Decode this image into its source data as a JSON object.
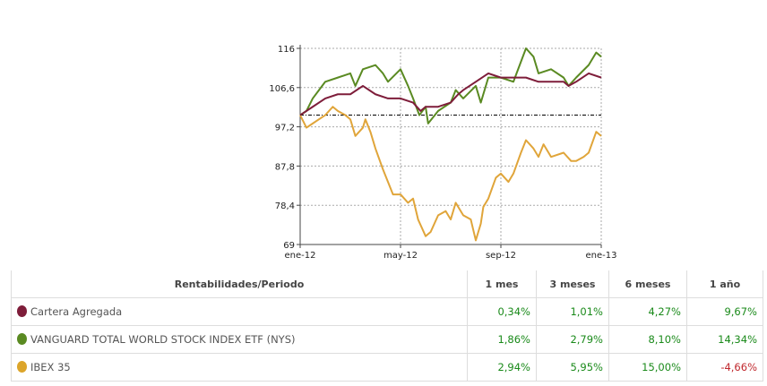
{
  "chart_data": {
    "type": "line",
    "title": "",
    "xlabel": "",
    "ylabel": "",
    "xlim": [
      0,
      12
    ],
    "ylim": [
      69,
      116
    ],
    "x_ticks": [
      {
        "value": 0,
        "label": "ene-12"
      },
      {
        "value": 4,
        "label": "may-12"
      },
      {
        "value": 8,
        "label": "sep-12"
      },
      {
        "value": 12,
        "label": "ene-13"
      }
    ],
    "y_ticks": [
      {
        "value": 116,
        "label": "116"
      },
      {
        "value": 106.6,
        "label": "106,6"
      },
      {
        "value": 97.2,
        "label": "97,2"
      },
      {
        "value": 87.8,
        "label": "87,8"
      },
      {
        "value": 78.4,
        "label": "78,4"
      },
      {
        "value": 69,
        "label": "69"
      }
    ],
    "reference_line": 100,
    "grid": true,
    "series": [
      {
        "name": "IBEX 35",
        "color": "#e0a53a",
        "points": [
          [
            0,
            100
          ],
          [
            0.25,
            97
          ],
          [
            0.5,
            98
          ],
          [
            0.75,
            99
          ],
          [
            1,
            100
          ],
          [
            1.3,
            102
          ],
          [
            1.5,
            101
          ],
          [
            1.8,
            100
          ],
          [
            2,
            99
          ],
          [
            2.2,
            95
          ],
          [
            2.5,
            97
          ],
          [
            2.6,
            99
          ],
          [
            2.8,
            96
          ],
          [
            3,
            92
          ],
          [
            3.3,
            87
          ],
          [
            3.5,
            84
          ],
          [
            3.7,
            81
          ],
          [
            4,
            81
          ],
          [
            4.3,
            79
          ],
          [
            4.5,
            80
          ],
          [
            4.7,
            75
          ],
          [
            5,
            71
          ],
          [
            5.2,
            72
          ],
          [
            5.5,
            76
          ],
          [
            5.8,
            77
          ],
          [
            6,
            75
          ],
          [
            6.2,
            79
          ],
          [
            6.5,
            76
          ],
          [
            6.8,
            75
          ],
          [
            7,
            70
          ],
          [
            7.2,
            74
          ],
          [
            7.3,
            78
          ],
          [
            7.5,
            80
          ],
          [
            7.8,
            85
          ],
          [
            8,
            86
          ],
          [
            8.3,
            84
          ],
          [
            8.5,
            86
          ],
          [
            8.8,
            91
          ],
          [
            9,
            94
          ],
          [
            9.3,
            92
          ],
          [
            9.5,
            90
          ],
          [
            9.7,
            93
          ],
          [
            10,
            90
          ],
          [
            10.5,
            91
          ],
          [
            10.8,
            89
          ],
          [
            11,
            89
          ],
          [
            11.3,
            90
          ],
          [
            11.5,
            91
          ],
          [
            11.8,
            96
          ],
          [
            12,
            95
          ]
        ]
      },
      {
        "name": "VANGUARD TOTAL WORLD STOCK INDEX ETF (NYS)",
        "color": "#5a8a22",
        "points": [
          [
            0,
            100
          ],
          [
            0.25,
            101
          ],
          [
            0.5,
            104
          ],
          [
            0.75,
            106
          ],
          [
            1,
            108
          ],
          [
            1.5,
            109
          ],
          [
            2,
            110
          ],
          [
            2.2,
            107
          ],
          [
            2.5,
            111
          ],
          [
            3,
            112
          ],
          [
            3.3,
            110
          ],
          [
            3.5,
            108
          ],
          [
            4,
            111
          ],
          [
            4.3,
            107
          ],
          [
            4.5,
            104
          ],
          [
            4.75,
            100
          ],
          [
            5,
            102
          ],
          [
            5.1,
            98
          ],
          [
            5.5,
            101
          ],
          [
            6,
            103
          ],
          [
            6.2,
            106
          ],
          [
            6.5,
            104
          ],
          [
            7,
            107
          ],
          [
            7.2,
            103
          ],
          [
            7.5,
            109
          ],
          [
            8,
            109
          ],
          [
            8.5,
            108
          ],
          [
            9,
            116
          ],
          [
            9.3,
            114
          ],
          [
            9.5,
            110
          ],
          [
            10,
            111
          ],
          [
            10.5,
            109
          ],
          [
            10.7,
            107
          ],
          [
            11,
            109
          ],
          [
            11.5,
            112
          ],
          [
            11.8,
            115
          ],
          [
            12,
            114
          ]
        ]
      },
      {
        "name": "Cartera Agregada",
        "color": "#7e1d3a",
        "points": [
          [
            0,
            100
          ],
          [
            0.5,
            102
          ],
          [
            1,
            104
          ],
          [
            1.5,
            105
          ],
          [
            2,
            105
          ],
          [
            2.5,
            107
          ],
          [
            3,
            105
          ],
          [
            3.5,
            104
          ],
          [
            4,
            104
          ],
          [
            4.5,
            103
          ],
          [
            4.8,
            101
          ],
          [
            5,
            102
          ],
          [
            5.5,
            102
          ],
          [
            6,
            103
          ],
          [
            6.3,
            105
          ],
          [
            6.5,
            106
          ],
          [
            7,
            108
          ],
          [
            7.5,
            110
          ],
          [
            8,
            109
          ],
          [
            8.5,
            109
          ],
          [
            9,
            109
          ],
          [
            9.5,
            108
          ],
          [
            10,
            108
          ],
          [
            10.5,
            108
          ],
          [
            10.7,
            107
          ],
          [
            11,
            108
          ],
          [
            11.5,
            110
          ],
          [
            12,
            109
          ]
        ]
      }
    ]
  },
  "table": {
    "header": "Rentabilidades/Periodo",
    "columns": [
      "1 mes",
      "3 meses",
      "6 meses",
      "1 año"
    ],
    "rows": [
      {
        "name": "Cartera Agregada",
        "color": "#7e1d3a",
        "values": [
          "0,34%",
          "1,01%",
          "4,27%",
          "9,67%"
        ]
      },
      {
        "name": "VANGUARD TOTAL WORLD STOCK INDEX ETF (NYS)",
        "color": "#5a8a22",
        "values": [
          "1,86%",
          "2,79%",
          "8,10%",
          "14,34%"
        ]
      },
      {
        "name": "IBEX 35",
        "color": "#dca52a",
        "values": [
          "2,94%",
          "5,95%",
          "15,00%",
          "-4,66%"
        ]
      }
    ]
  }
}
